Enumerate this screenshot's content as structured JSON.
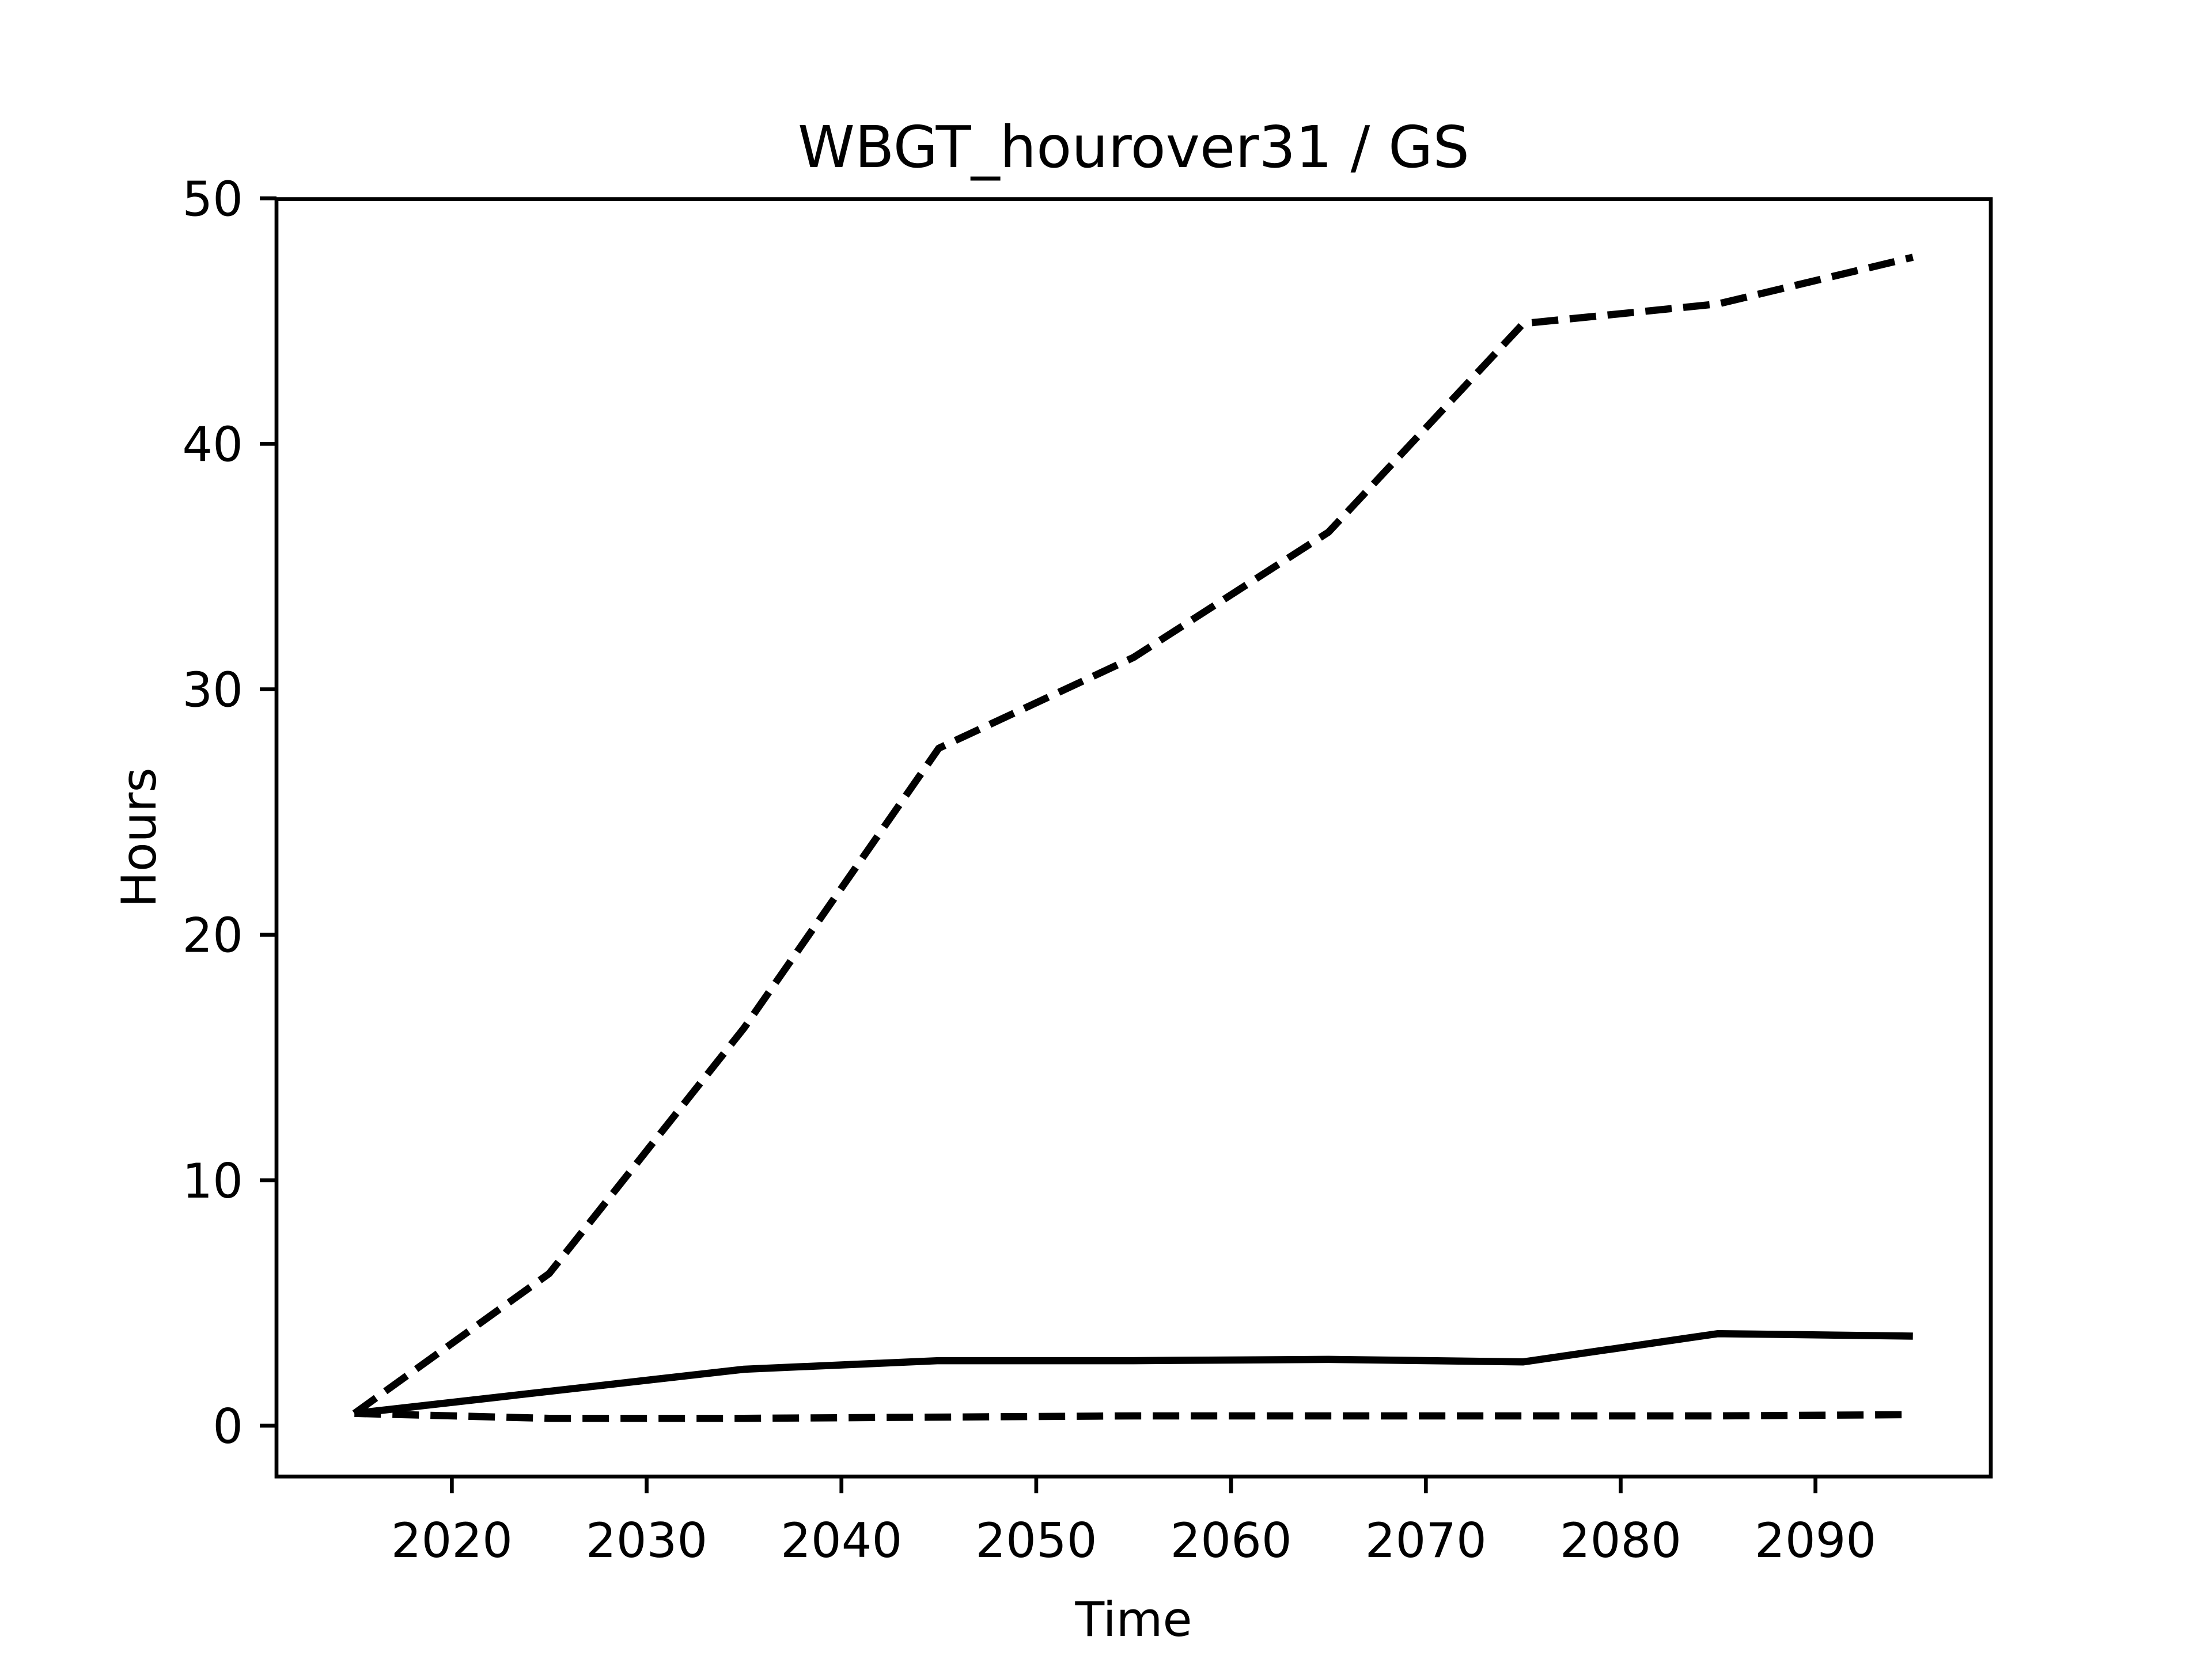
{
  "chart_data": {
    "type": "line",
    "title": "WBGT_hourover31 / GS",
    "xlabel": "Time",
    "ylabel": "Hours",
    "x": [
      2015,
      2025,
      2035,
      2045,
      2055,
      2065,
      2075,
      2085,
      2095
    ],
    "series": [
      {
        "color": "#000000",
        "dashed": true,
        "values": [
          0.5,
          6.2,
          16.2,
          27.6,
          31.3,
          36.4,
          44.9,
          45.7,
          47.6
        ]
      },
      {
        "color": "#000000",
        "dashed": false,
        "values": [
          0.5,
          1.4,
          2.3,
          2.65,
          2.65,
          2.7,
          2.6,
          3.75,
          3.65
        ]
      },
      {
        "color": "#000000",
        "dashed": true,
        "values": [
          0.5,
          0.3,
          0.3,
          0.35,
          0.4,
          0.4,
          0.4,
          0.4,
          0.45
        ]
      }
    ],
    "xlim": [
      2011,
      2099
    ],
    "ylim": [
      -2.07,
      49.97
    ],
    "xticks": [
      2020,
      2030,
      2040,
      2050,
      2060,
      2070,
      2080,
      2090
    ],
    "yticks": [
      0,
      10,
      20,
      30,
      40,
      50
    ]
  }
}
